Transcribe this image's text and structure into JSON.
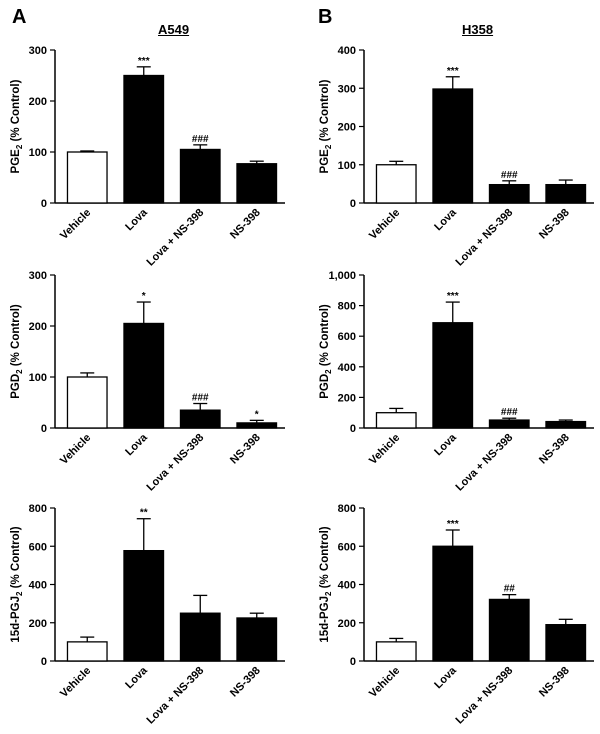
{
  "figure": {
    "panel_letters": [
      "A",
      "B"
    ],
    "column_titles": [
      "A549",
      "H358"
    ]
  },
  "colors": {
    "filled": "#000000",
    "open": "#ffffff",
    "stroke": "#000000"
  },
  "chart_data": [
    {
      "type": "bar",
      "cell_line": "A549",
      "ylabel_main": "PGE",
      "ylabel_sub": "2",
      "ylabel_rest": " (% Control)",
      "categories": [
        "Vehicle",
        "Lova",
        "Lova + NS-398",
        "NS-398"
      ],
      "values": [
        100,
        250,
        105,
        77
      ],
      "errors": [
        2,
        17,
        9,
        5
      ],
      "filled": [
        false,
        true,
        true,
        true
      ],
      "annotations": [
        "",
        "***",
        "###",
        ""
      ],
      "ylim": [
        0,
        300
      ],
      "yticks": [
        "0",
        "100",
        "200",
        "300"
      ],
      "ytick_values": [
        0,
        100,
        200,
        300
      ]
    },
    {
      "type": "bar",
      "cell_line": "H358",
      "ylabel_main": "PGE",
      "ylabel_sub": "2",
      "ylabel_rest": " (% Control)",
      "categories": [
        "Vehicle",
        "Lova",
        "Lova + NS-398",
        "NS-398"
      ],
      "values": [
        100,
        298,
        48,
        48
      ],
      "errors": [
        9,
        32,
        10,
        12
      ],
      "filled": [
        false,
        true,
        true,
        true
      ],
      "annotations": [
        "",
        "***",
        "###",
        ""
      ],
      "ylim": [
        0,
        400
      ],
      "yticks": [
        "0",
        "100",
        "200",
        "300",
        "400"
      ],
      "ytick_values": [
        0,
        100,
        200,
        300,
        400
      ]
    },
    {
      "type": "bar",
      "cell_line": "A549",
      "ylabel_main": "PGD",
      "ylabel_sub": "2",
      "ylabel_rest": " (% Control)",
      "categories": [
        "Vehicle",
        "Lova",
        "Lova + NS-398",
        "NS-398"
      ],
      "values": [
        100,
        205,
        35,
        10
      ],
      "errors": [
        8,
        42,
        13,
        5
      ],
      "filled": [
        false,
        true,
        true,
        true
      ],
      "annotations": [
        "",
        "*",
        "###",
        "*"
      ],
      "ylim": [
        0,
        300
      ],
      "yticks": [
        "0",
        "100",
        "200",
        "300"
      ],
      "ytick_values": [
        0,
        100,
        200,
        300
      ]
    },
    {
      "type": "bar",
      "cell_line": "H358",
      "ylabel_main": "PGD",
      "ylabel_sub": "2",
      "ylabel_rest": " (% Control)",
      "categories": [
        "Vehicle",
        "Lova",
        "Lova + NS-398",
        "NS-398"
      ],
      "values": [
        100,
        688,
        52,
        42
      ],
      "errors": [
        28,
        135,
        12,
        10
      ],
      "filled": [
        false,
        true,
        true,
        true
      ],
      "annotations": [
        "",
        "***",
        "###",
        ""
      ],
      "ylim": [
        0,
        1000
      ],
      "yticks": [
        "0",
        "200",
        "400",
        "600",
        "800",
        "1,000"
      ],
      "ytick_values": [
        0,
        200,
        400,
        600,
        800,
        1000
      ]
    },
    {
      "type": "bar",
      "cell_line": "A549",
      "ylabel_main": "15d-PGJ",
      "ylabel_sub": "2",
      "ylabel_rest": " (% Control)",
      "categories": [
        "Vehicle",
        "Lova",
        "Lova + NS-398",
        "NS-398"
      ],
      "values": [
        100,
        577,
        250,
        225
      ],
      "errors": [
        25,
        167,
        93,
        25
      ],
      "filled": [
        false,
        true,
        true,
        true
      ],
      "annotations": [
        "",
        "**",
        "",
        ""
      ],
      "ylim": [
        0,
        800
      ],
      "yticks": [
        "0",
        "200",
        "400",
        "600",
        "800"
      ],
      "ytick_values": [
        0,
        200,
        400,
        600,
        800
      ]
    },
    {
      "type": "bar",
      "cell_line": "H358",
      "ylabel_main": "15d-PGJ",
      "ylabel_sub": "2",
      "ylabel_rest": " (% Control)",
      "categories": [
        "Vehicle",
        "Lova",
        "Lova + NS-398",
        "NS-398"
      ],
      "values": [
        100,
        600,
        322,
        190
      ],
      "errors": [
        18,
        85,
        25,
        28
      ],
      "filled": [
        false,
        true,
        true,
        true
      ],
      "annotations": [
        "",
        "***",
        "##",
        ""
      ],
      "ylim": [
        0,
        800
      ],
      "yticks": [
        "0",
        "200",
        "400",
        "600",
        "800"
      ],
      "ytick_values": [
        0,
        200,
        400,
        600,
        800
      ]
    }
  ]
}
